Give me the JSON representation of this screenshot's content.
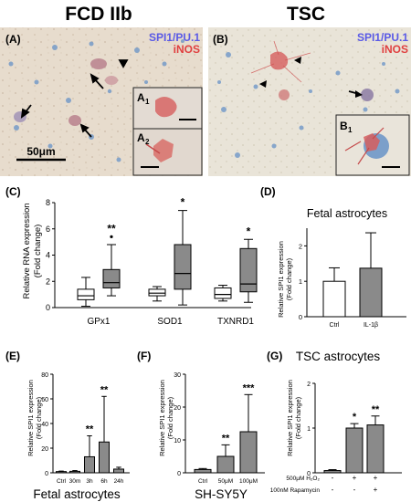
{
  "top": {
    "left": {
      "title": "FCD IIb",
      "panel": "(A)",
      "stain1": "SPI1/PU.1",
      "stain2": "iNOS",
      "scale": "50μm",
      "inset1": "A",
      "inset1_sub": "1",
      "inset2": "A",
      "inset2_sub": "2"
    },
    "right": {
      "title": "TSC",
      "panel": "(B)",
      "stain1": "SPI1/PU.1",
      "stain2": "iNOS",
      "inset1": "B",
      "inset1_sub": "1"
    },
    "colors": {
      "spi1": "#5a5ae6",
      "inos": "#e04040"
    }
  },
  "panels": {
    "C": {
      "label": "(C)",
      "ylabel1": "Relative RNA expression",
      "ylabel2": "(Fold change)"
    },
    "D": {
      "label": "(D)",
      "title": "Fetal astrocytes",
      "ylabel1": "Relative SPI1 expression",
      "ylabel2": "(Fold change)"
    },
    "E": {
      "label": "(E)",
      "ylabel1": "Relative SPI1 expression",
      "ylabel2": "(Fold change)",
      "caption": "Fetal astrocytes"
    },
    "F": {
      "label": "(F)",
      "ylabel1": "Relative SPI1 expression",
      "ylabel2": "(Fold change)",
      "caption": "SH-SY5Y"
    },
    "G": {
      "label": "(G)",
      "title": "TSC astrocytes",
      "ylabel1": "Relative SPI1 expression",
      "ylabel2": "(Fold change)",
      "row1": "500μM H₂O₂",
      "row2": "100nM Rapamycin",
      "row1_vals": [
        "-",
        "+",
        "+"
      ],
      "row2_vals": [
        "-",
        "-",
        "+"
      ]
    }
  },
  "chart_data": [
    {
      "panel": "C",
      "type": "box",
      "categories": [
        "GPx1",
        "SOD1",
        "TXNRD1"
      ],
      "ylim": [
        0,
        8
      ],
      "yticks": [
        0,
        2,
        4,
        6,
        8
      ],
      "groups": [
        {
          "name": "GPx1",
          "boxes": [
            {
              "fill": "white",
              "min": 0.1,
              "q1": 0.6,
              "median": 0.9,
              "q3": 1.4,
              "max": 2.3
            },
            {
              "fill": "gray",
              "min": 0.9,
              "q1": 1.5,
              "median": 1.9,
              "q3": 2.9,
              "max": 4.8,
              "outlier": 5.4
            }
          ],
          "sig": "**"
        },
        {
          "name": "SOD1",
          "boxes": [
            {
              "fill": "white",
              "min": 0.5,
              "q1": 0.9,
              "median": 1.1,
              "q3": 1.4,
              "max": 1.6
            },
            {
              "fill": "gray",
              "min": 0.2,
              "q1": 1.4,
              "median": 2.6,
              "q3": 4.8,
              "max": 7.4
            }
          ],
          "sig": "*"
        },
        {
          "name": "TXNRD1",
          "boxes": [
            {
              "fill": "white",
              "min": 0.5,
              "q1": 0.7,
              "median": 1.0,
              "q3": 1.5,
              "max": 1.7
            },
            {
              "fill": "gray",
              "min": 0.4,
              "q1": 1.2,
              "median": 1.8,
              "q3": 4.5,
              "max": 5.2
            }
          ],
          "sig": "*"
        }
      ]
    },
    {
      "panel": "D",
      "type": "bar",
      "categories": [
        "Ctrl",
        "IL-1β"
      ],
      "values": [
        1.0,
        1.37
      ],
      "errors": [
        0.38,
        1.0
      ],
      "fills": [
        "white",
        "gray"
      ],
      "ylim": [
        0,
        2.5
      ],
      "yticks": [
        0,
        1,
        2
      ]
    },
    {
      "panel": "E",
      "type": "bar",
      "categories": [
        "Ctrl",
        "30m",
        "3h",
        "6h",
        "24h"
      ],
      "values": [
        1,
        1.2,
        13,
        25,
        3
      ],
      "errors": [
        0.4,
        0.6,
        17,
        37,
        1.5
      ],
      "sig": [
        "",
        "",
        "**",
        "**",
        ""
      ],
      "ylim": [
        0,
        80
      ],
      "yticks": [
        0,
        20,
        40,
        60,
        80
      ]
    },
    {
      "panel": "F",
      "type": "bar",
      "categories": [
        "Ctrl",
        "50μM",
        "100μM"
      ],
      "values": [
        1,
        5,
        12.5
      ],
      "errors": [
        0.3,
        3.5,
        11.3
      ],
      "sig": [
        "",
        "**",
        "***"
      ],
      "ylim": [
        0,
        30
      ],
      "yticks": [
        0,
        10,
        20,
        30
      ]
    },
    {
      "panel": "G",
      "type": "bar",
      "values": [
        0.05,
        1.0,
        1.07
      ],
      "errors": [
        0.02,
        0.1,
        0.2
      ],
      "sig": [
        "",
        "*",
        "**"
      ],
      "ylim": [
        0,
        2
      ],
      "yticks": [
        0,
        1,
        2
      ]
    }
  ]
}
